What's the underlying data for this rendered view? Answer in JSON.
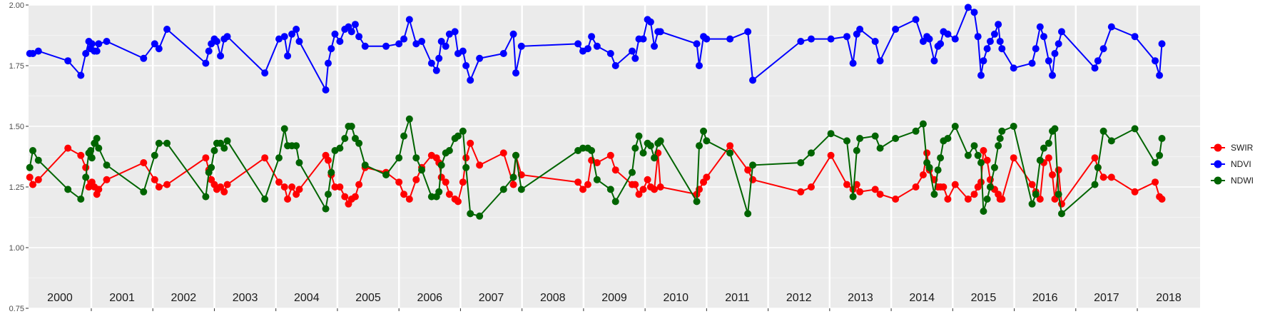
{
  "chart_data": {
    "type": "line",
    "title": "",
    "xlabel": "",
    "ylabel": "",
    "ylim": [
      0.75,
      2.0
    ],
    "xlim": [
      1999.98,
      2019.02
    ],
    "y_ticks": [
      "0.75",
      "1.00",
      "1.25",
      "1.50",
      "1.75",
      "2.00"
    ],
    "y_tick_values": [
      0.75,
      1.0,
      1.25,
      1.5,
      1.75,
      2.0
    ],
    "year_labels": [
      "2000",
      "2001",
      "2002",
      "2003",
      "2004",
      "2005",
      "2006",
      "2007",
      "2008",
      "2009",
      "2010",
      "2011",
      "2012",
      "2013",
      "2014",
      "2015",
      "2016",
      "2017",
      "2018"
    ],
    "year_boundaries": [
      2001,
      2002,
      2003,
      2004,
      2005,
      2006,
      2007,
      2008,
      2009,
      2010,
      2011,
      2012,
      2013,
      2014,
      2015,
      2016,
      2017,
      2018
    ],
    "grid": true,
    "legend_position": "right",
    "x": [
      2000.0,
      2000.05,
      2000.14,
      2000.62,
      2000.83,
      2000.91,
      2000.96,
      2000.99,
      2001.01,
      2001.05,
      2001.09,
      2001.12,
      2001.25,
      2001.85,
      2002.03,
      2002.1,
      2002.23,
      2002.86,
      2002.91,
      2002.95,
      2003.0,
      2003.04,
      2003.1,
      2003.16,
      2003.21,
      2003.82,
      2004.05,
      2004.14,
      2004.19,
      2004.26,
      2004.33,
      2004.38,
      2004.81,
      2004.85,
      2004.9,
      2004.96,
      2005.04,
      2005.12,
      2005.18,
      2005.23,
      2005.29,
      2005.35,
      2005.45,
      2005.79,
      2006.0,
      2006.08,
      2006.17,
      2006.28,
      2006.37,
      2006.53,
      2006.61,
      2006.65,
      2006.69,
      2006.76,
      2006.82,
      2006.91,
      2006.96,
      2007.04,
      2007.09,
      2007.16,
      2007.31,
      2007.7,
      2007.86,
      2007.9,
      2007.99,
      2008.91,
      2008.99,
      2009.07,
      2009.13,
      2009.22,
      2009.44,
      2009.52,
      2009.79,
      2009.84,
      2009.9,
      2009.97,
      2010.04,
      2010.09,
      2010.15,
      2010.21,
      2010.25,
      2010.84,
      2010.88,
      2010.95,
      2011.0,
      2011.38,
      2011.67,
      2011.75,
      2012.53,
      2012.7,
      2013.02,
      2013.28,
      2013.38,
      2013.44,
      2013.49,
      2013.74,
      2013.82,
      2014.07,
      2014.4,
      2014.52,
      2014.58,
      2014.62,
      2014.7,
      2014.76,
      2014.8,
      2014.85,
      2014.92,
      2015.04,
      2015.25,
      2015.35,
      2015.41,
      2015.46,
      2015.5,
      2015.56,
      2015.61,
      2015.68,
      2015.74,
      2015.77,
      2015.8,
      2015.99,
      2016.29,
      2016.35,
      2016.42,
      2016.48,
      2016.56,
      2016.62,
      2016.66,
      2016.72,
      2016.77,
      2017.31,
      2017.36,
      2017.45,
      2017.58,
      2017.96,
      2018.29,
      2018.36,
      2018.4
    ],
    "series": [
      {
        "name": "SWIR",
        "color": "#ff0000",
        "values": [
          1.29,
          1.26,
          1.28,
          1.41,
          1.38,
          1.33,
          1.25,
          1.26,
          1.27,
          1.25,
          1.22,
          1.24,
          1.28,
          1.35,
          1.28,
          1.25,
          1.26,
          1.37,
          1.32,
          1.28,
          1.26,
          1.24,
          1.25,
          1.23,
          1.26,
          1.37,
          1.27,
          1.25,
          1.2,
          1.25,
          1.22,
          1.24,
          1.38,
          1.36,
          1.3,
          1.25,
          1.25,
          1.21,
          1.18,
          1.2,
          1.21,
          1.26,
          1.33,
          1.31,
          1.27,
          1.22,
          1.2,
          1.28,
          1.33,
          1.38,
          1.37,
          1.35,
          1.29,
          1.27,
          1.22,
          1.2,
          1.19,
          1.27,
          1.37,
          1.43,
          1.34,
          1.39,
          1.26,
          1.38,
          1.3,
          1.27,
          1.24,
          1.26,
          1.36,
          1.35,
          1.38,
          1.32,
          1.26,
          1.26,
          1.22,
          1.24,
          1.28,
          1.25,
          1.24,
          1.39,
          1.25,
          1.22,
          1.24,
          1.27,
          1.29,
          1.42,
          1.32,
          1.28,
          1.23,
          1.25,
          1.38,
          1.26,
          1.24,
          1.26,
          1.23,
          1.24,
          1.22,
          1.2,
          1.25,
          1.3,
          1.39,
          1.32,
          1.28,
          1.25,
          1.25,
          1.25,
          1.2,
          1.26,
          1.2,
          1.22,
          1.25,
          1.27,
          1.4,
          1.36,
          1.28,
          1.24,
          1.22,
          1.2,
          1.2,
          1.37,
          1.26,
          1.23,
          1.2,
          1.35,
          1.37,
          1.3,
          1.2,
          1.32,
          1.18,
          1.37,
          1.33,
          1.29,
          1.29,
          1.23,
          1.27,
          1.21,
          1.2
        ]
      },
      {
        "name": "NDVI",
        "color": "#0000ff",
        "values": [
          1.8,
          1.8,
          1.81,
          1.77,
          1.71,
          1.8,
          1.85,
          1.82,
          1.84,
          1.81,
          1.81,
          1.84,
          1.85,
          1.78,
          1.84,
          1.82,
          1.9,
          1.76,
          1.81,
          1.84,
          1.86,
          1.85,
          1.79,
          1.86,
          1.87,
          1.72,
          1.86,
          1.87,
          1.79,
          1.88,
          1.9,
          1.85,
          1.65,
          1.76,
          1.82,
          1.88,
          1.85,
          1.9,
          1.91,
          1.89,
          1.92,
          1.87,
          1.83,
          1.83,
          1.84,
          1.86,
          1.94,
          1.84,
          1.85,
          1.76,
          1.73,
          1.78,
          1.85,
          1.83,
          1.88,
          1.89,
          1.8,
          1.81,
          1.75,
          1.69,
          1.78,
          1.8,
          1.88,
          1.72,
          1.83,
          1.84,
          1.81,
          1.82,
          1.87,
          1.83,
          1.8,
          1.75,
          1.81,
          1.78,
          1.86,
          1.86,
          1.94,
          1.93,
          1.83,
          1.89,
          1.89,
          1.84,
          1.75,
          1.87,
          1.86,
          1.86,
          1.89,
          1.69,
          1.85,
          1.86,
          1.86,
          1.87,
          1.76,
          1.88,
          1.9,
          1.85,
          1.77,
          1.9,
          1.94,
          1.85,
          1.87,
          1.86,
          1.77,
          1.83,
          1.84,
          1.89,
          1.88,
          1.86,
          1.99,
          1.97,
          1.87,
          1.71,
          1.77,
          1.82,
          1.85,
          1.88,
          1.92,
          1.85,
          1.82,
          1.74,
          1.76,
          1.82,
          1.91,
          1.87,
          1.77,
          1.71,
          1.8,
          1.84,
          1.89,
          1.74,
          1.77,
          1.82,
          1.91,
          1.87,
          1.77,
          1.71,
          1.84
        ]
      },
      {
        "name": "NDWI",
        "color": "#006400",
        "values": [
          1.33,
          1.4,
          1.36,
          1.24,
          1.2,
          1.29,
          1.39,
          1.4,
          1.37,
          1.43,
          1.45,
          1.41,
          1.34,
          1.23,
          1.38,
          1.43,
          1.43,
          1.21,
          1.31,
          1.33,
          1.4,
          1.43,
          1.43,
          1.41,
          1.44,
          1.2,
          1.37,
          1.49,
          1.42,
          1.42,
          1.42,
          1.35,
          1.16,
          1.22,
          1.31,
          1.4,
          1.41,
          1.45,
          1.5,
          1.5,
          1.45,
          1.43,
          1.34,
          1.3,
          1.37,
          1.46,
          1.53,
          1.37,
          1.32,
          1.21,
          1.21,
          1.23,
          1.34,
          1.39,
          1.4,
          1.45,
          1.46,
          1.48,
          1.33,
          1.14,
          1.13,
          1.24,
          1.29,
          1.38,
          1.24,
          1.4,
          1.41,
          1.41,
          1.4,
          1.28,
          1.24,
          1.19,
          1.31,
          1.41,
          1.46,
          1.39,
          1.43,
          1.42,
          1.37,
          1.43,
          1.44,
          1.19,
          1.42,
          1.48,
          1.44,
          1.39,
          1.14,
          1.34,
          1.35,
          1.39,
          1.47,
          1.44,
          1.21,
          1.4,
          1.45,
          1.46,
          1.41,
          1.45,
          1.48,
          1.51,
          1.35,
          1.33,
          1.22,
          1.32,
          1.37,
          1.44,
          1.45,
          1.5,
          1.38,
          1.42,
          1.38,
          1.35,
          1.15,
          1.2,
          1.25,
          1.33,
          1.42,
          1.45,
          1.48,
          1.5,
          1.18,
          1.22,
          1.36,
          1.41,
          1.43,
          1.48,
          1.49,
          1.22,
          1.14,
          1.26,
          1.33,
          1.48,
          1.44,
          1.49,
          1.35,
          1.38,
          1.45
        ]
      }
    ]
  }
}
